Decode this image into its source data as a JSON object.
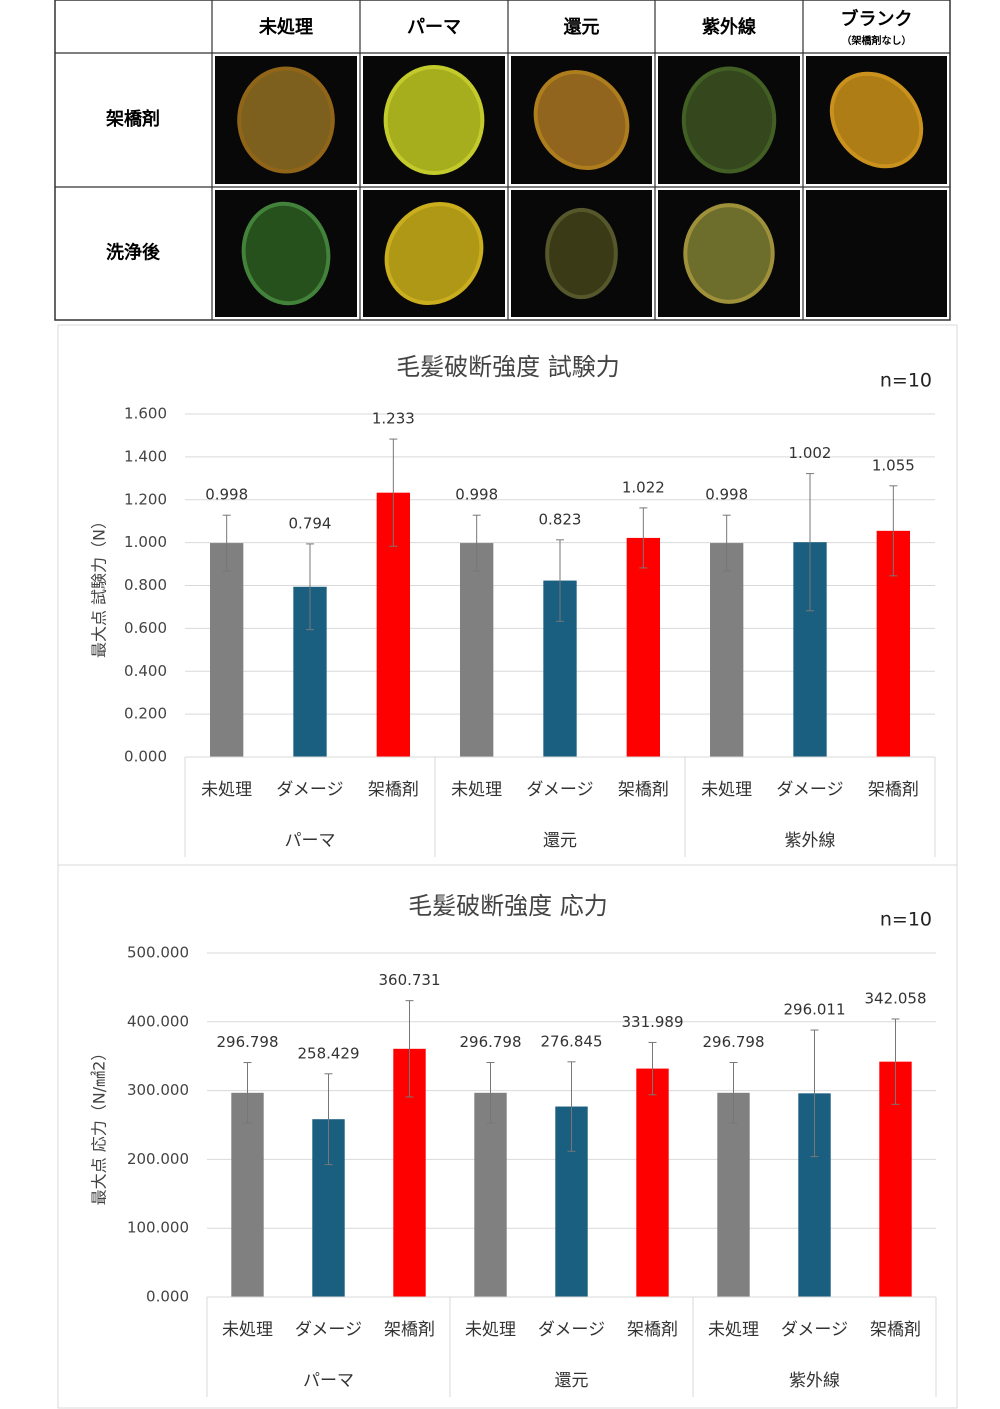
{
  "table": {
    "columns": [
      "未処理",
      "パーマ",
      "還元",
      "紫外線",
      "ブランク"
    ],
    "column_note": "（架橋剤なし）",
    "rows": [
      "架橋剤",
      "洗浄後"
    ]
  },
  "chart_data": [
    {
      "type": "bar",
      "title": "毛髪破断強度 試験力",
      "annotation": "n=10",
      "y_label": "最大点 試験力（N）",
      "colors": [
        "#808080",
        "#1a5e80",
        "#ff0000"
      ],
      "groups": [
        {
          "name": "パーマ",
          "categories": [
            "未処理",
            "ダメージ",
            "架橋剤"
          ],
          "values": [
            0.998,
            0.794,
            1.233
          ],
          "errors": [
            0.13,
            0.2,
            0.25
          ]
        },
        {
          "name": "還元",
          "categories": [
            "未処理",
            "ダメージ",
            "架橋剤"
          ],
          "values": [
            0.998,
            0.823,
            1.022
          ],
          "errors": [
            0.13,
            0.19,
            0.14
          ]
        },
        {
          "name": "紫外線",
          "categories": [
            "未処理",
            "ダメージ",
            "架橋剤"
          ],
          "values": [
            0.998,
            1.002,
            1.055
          ],
          "errors": [
            0.13,
            0.32,
            0.21
          ]
        }
      ],
      "ylim": [
        0,
        1.6
      ],
      "yticks": [
        {
          "value": 0,
          "label": "0.000"
        },
        {
          "value": 0.2,
          "label": "0.200"
        },
        {
          "value": 0.4,
          "label": "0.400"
        },
        {
          "value": 0.6,
          "label": "0.600"
        },
        {
          "value": 0.8,
          "label": "0.800"
        },
        {
          "value": 1.0,
          "label": "1.000"
        },
        {
          "value": 1.2,
          "label": "1.200"
        },
        {
          "value": 1.4,
          "label": "1.400"
        },
        {
          "value": 1.6,
          "label": "1.600"
        }
      ],
      "grid": true
    },
    {
      "type": "bar",
      "title": "毛髪破断強度 応力",
      "annotation": "n=10",
      "y_label": "最大点 応力（N/㎟2）",
      "colors": [
        "#808080",
        "#1a5e80",
        "#ff0000"
      ],
      "groups": [
        {
          "name": "パーマ",
          "categories": [
            "未処理",
            "ダメージ",
            "架橋剤"
          ],
          "values": [
            296.798,
            258.429,
            360.731
          ],
          "errors": [
            44,
            66,
            70
          ]
        },
        {
          "name": "還元",
          "categories": [
            "未処理",
            "ダメージ",
            "架橋剤"
          ],
          "values": [
            296.798,
            276.845,
            331.989
          ],
          "errors": [
            44,
            65,
            38
          ]
        },
        {
          "name": "紫外線",
          "categories": [
            "未処理",
            "ダメージ",
            "架橋剤"
          ],
          "values": [
            296.798,
            296.011,
            342.058
          ],
          "errors": [
            44,
            92,
            62
          ]
        }
      ],
      "ylim": [
        0,
        500
      ],
      "yticks": [
        {
          "value": 0,
          "label": "0.000"
        },
        {
          "value": 100,
          "label": "100.000"
        },
        {
          "value": 200,
          "label": "200.000"
        },
        {
          "value": 300,
          "label": "300.000"
        },
        {
          "value": 400,
          "label": "400.000"
        },
        {
          "value": 500,
          "label": "500.000"
        }
      ],
      "grid": true
    }
  ]
}
